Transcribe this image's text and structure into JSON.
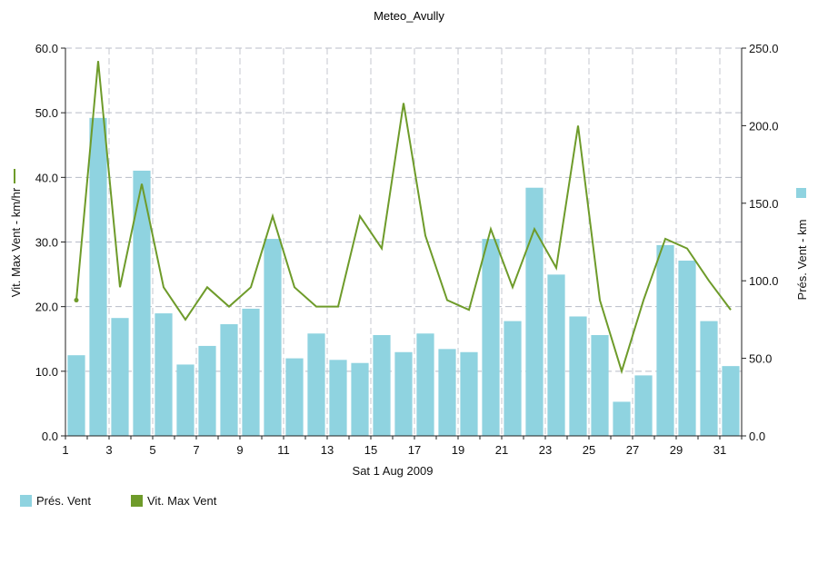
{
  "chart_data": {
    "type": "bar+line",
    "title": "Meteo_Avully",
    "xlabel": "Sat 1 Aug 2009",
    "ylabel_left": "Vit. Max Vent - km/hr",
    "ylabel_right": "Prés. Vent - km",
    "ylim_left": [
      0,
      60
    ],
    "ylim_right": [
      0,
      250
    ],
    "yticks_left": [
      "0.0",
      "10.0",
      "20.0",
      "30.0",
      "40.0",
      "50.0",
      "60.0"
    ],
    "yticks_right": [
      "0.0",
      "50.0",
      "100.0",
      "150.0",
      "200.0",
      "250.0"
    ],
    "xlim": [
      1,
      32
    ],
    "xticks": [
      "1",
      "3",
      "5",
      "7",
      "9",
      "11",
      "13",
      "15",
      "17",
      "19",
      "21",
      "23",
      "25",
      "27",
      "29",
      "31"
    ],
    "grid": true,
    "legend_position": "bottom-left",
    "x": [
      1,
      2,
      3,
      4,
      5,
      6,
      7,
      8,
      9,
      10,
      11,
      12,
      13,
      14,
      15,
      16,
      17,
      18,
      19,
      20,
      21,
      22,
      23,
      24,
      25,
      26,
      27,
      28,
      29,
      30,
      31
    ],
    "series": [
      {
        "name": "Prés. Vent",
        "type": "bar",
        "axis": "right",
        "color": "#8fd3e0",
        "values": [
          52,
          205,
          76,
          171,
          79,
          46,
          58,
          72,
          82,
          127,
          50,
          66,
          49,
          47,
          65,
          54,
          66,
          56,
          54,
          127,
          74,
          160,
          104,
          77,
          65,
          22,
          39,
          123,
          113,
          74,
          45
        ]
      },
      {
        "name": "Vit. Max Vent",
        "type": "line",
        "axis": "left",
        "color": "#6e9b2a",
        "values": [
          21,
          58,
          23,
          39,
          23,
          18,
          23,
          20,
          23,
          34,
          23,
          20,
          20,
          34,
          29,
          51.5,
          31,
          21,
          19.5,
          32,
          23,
          32,
          26,
          48,
          21,
          10,
          21,
          30.5,
          29,
          24,
          19.5
        ]
      }
    ]
  }
}
